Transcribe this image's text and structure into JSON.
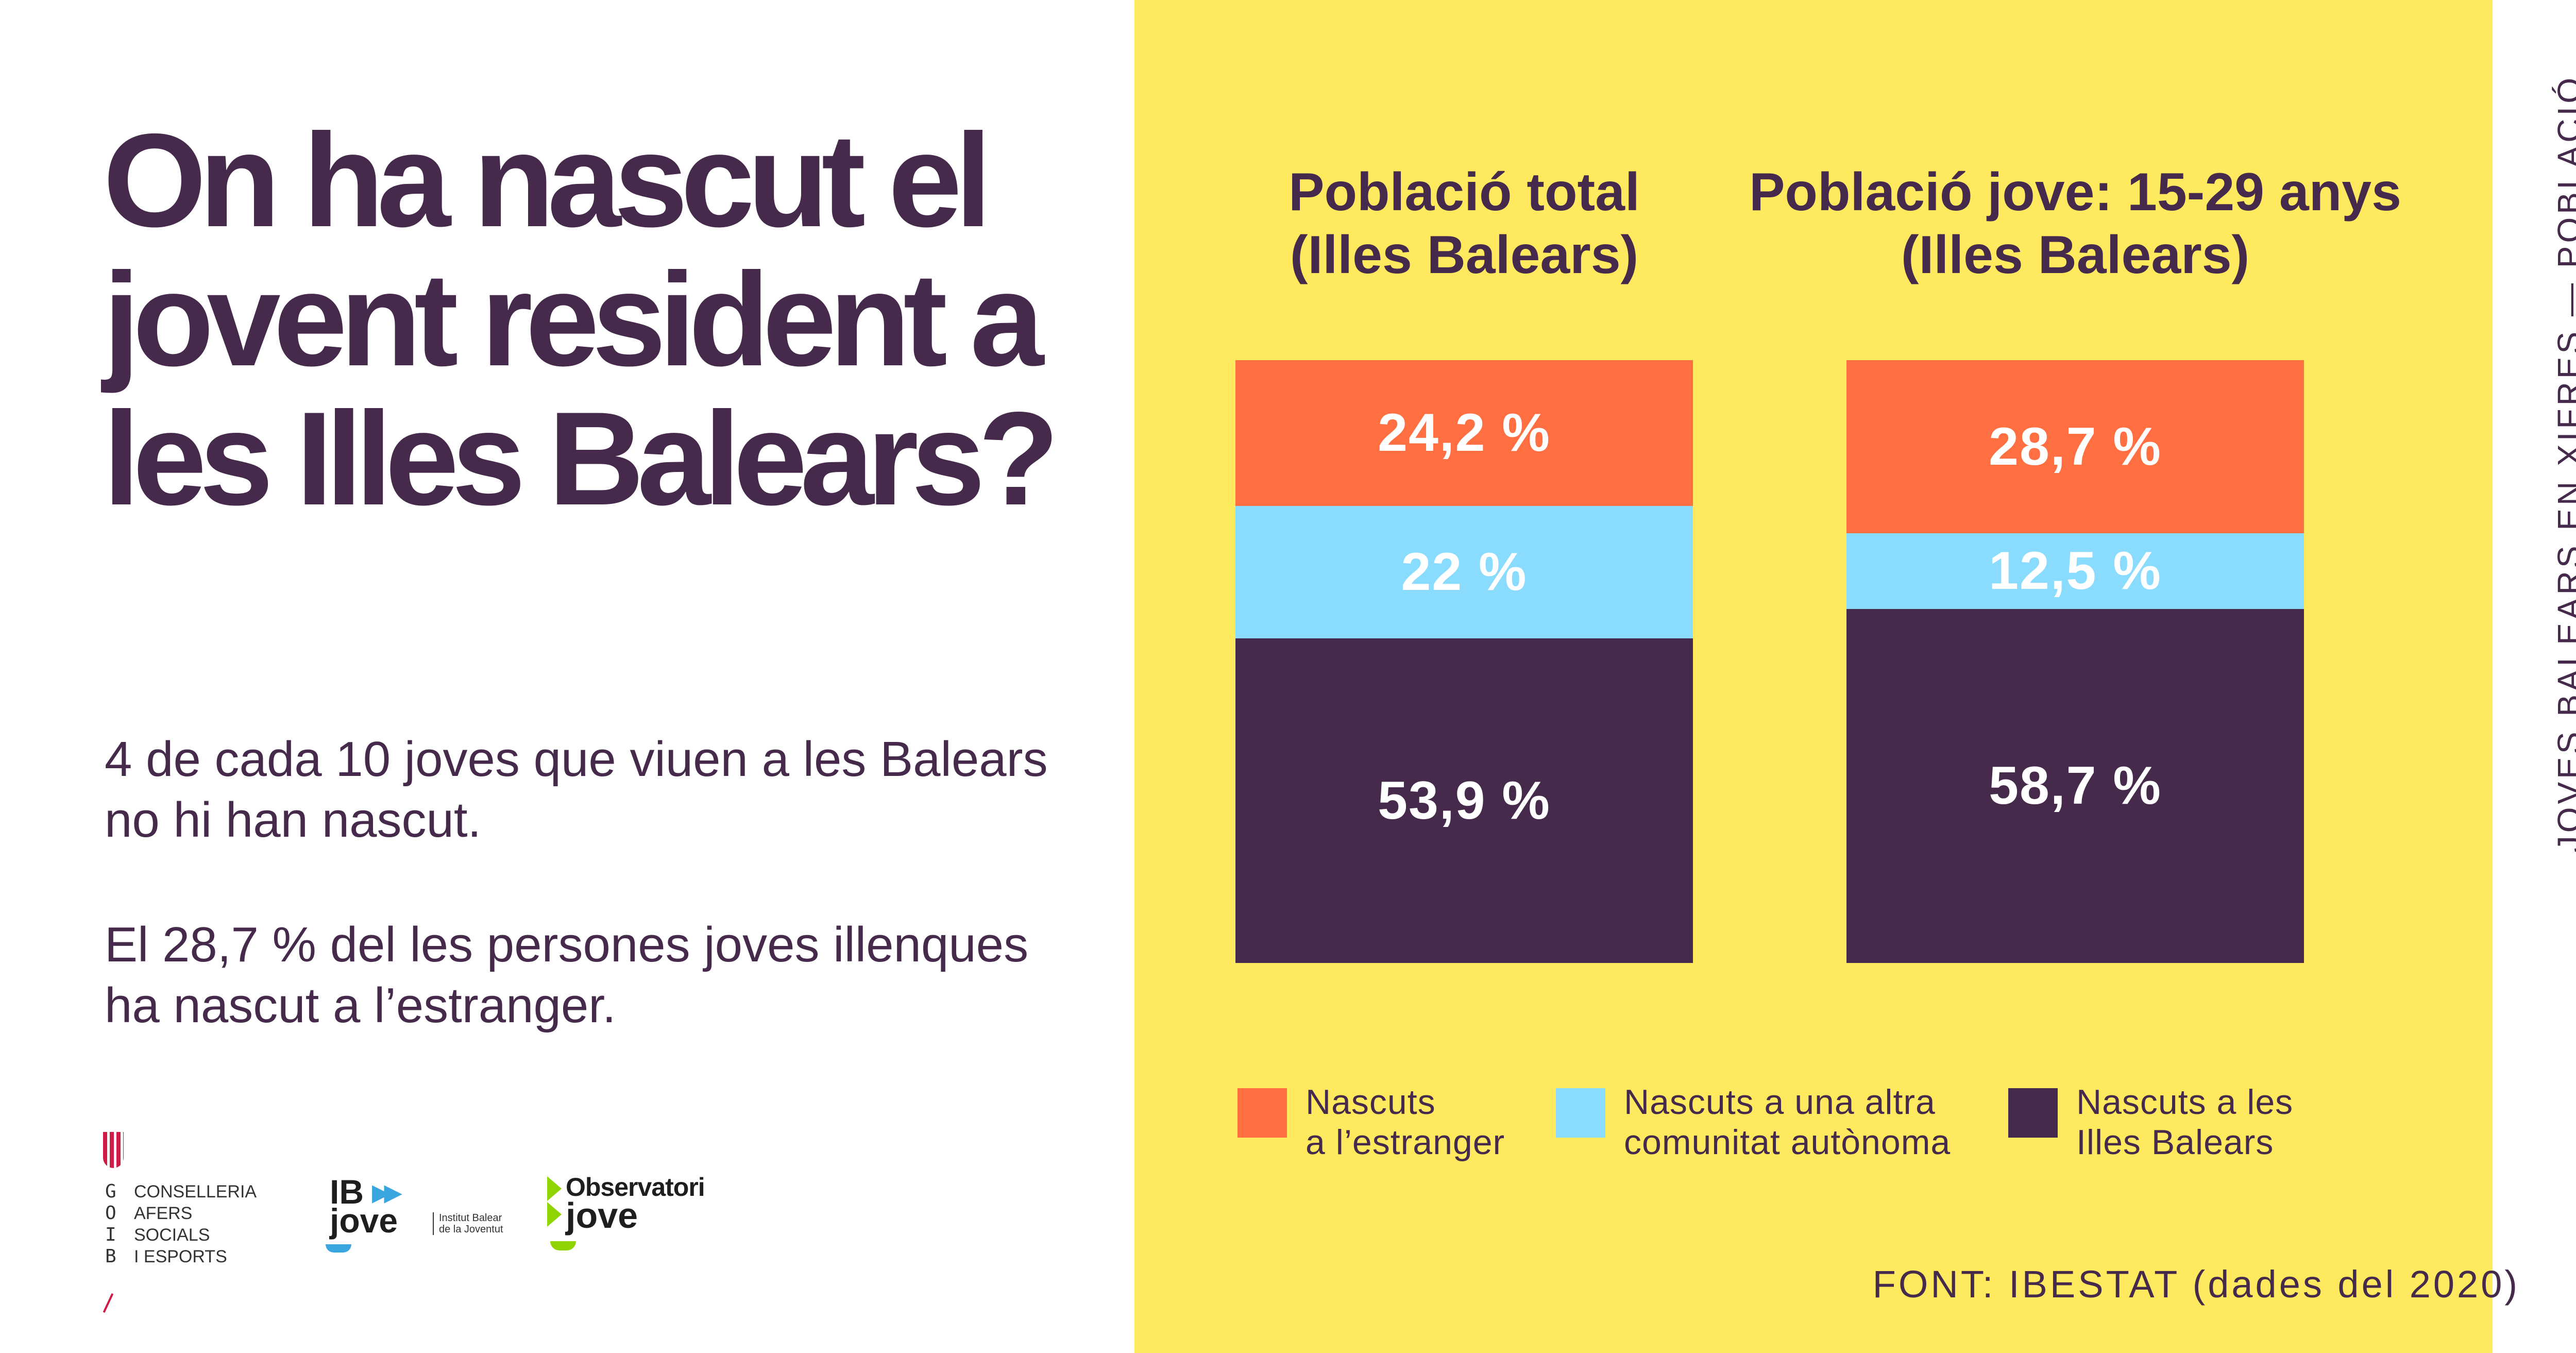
{
  "title": [
    "On ha nascut el",
    "jovent resident a",
    "les Illes Balears?"
  ],
  "paragraphs": [
    "4 de cada 10 joves que viuen a les Balears no hi han nascut.",
    "El 28,7 % del les persones joves illenques ha nascut a l’estranger."
  ],
  "side_label": "JOVES BALEARS EN XIFRES — POBLACIÓ",
  "source": "FONT: IBESTAT (dades del 2020)",
  "logos": {
    "goib_letters": "G\nO\nI\nB",
    "goib_words": "CONSELLERIA\nAFERS SOCIALS\nI ESPORTS",
    "ibjove_top": "IB",
    "ibjove_bottom": "jove",
    "ibjove_sub": "Institut Balear\nde la Joventut",
    "observatori_top": "Observatori",
    "observatori_bottom": "jove"
  },
  "colors": {
    "foreign": "#ff6f42",
    "other_region": "#8adcff",
    "balears": "#452a4b",
    "panel": "#ffe95e",
    "text": "#452a4b"
  },
  "chart_data": {
    "type": "bar",
    "stacked": true,
    "orientation": "vertical-100%",
    "categories": [
      "Població total\n(Illes Balears)",
      "Població jove: 15-29 anys\n(Illes Balears)"
    ],
    "series": [
      {
        "name": "Nascuts a l’estranger",
        "values": [
          24.2,
          28.7
        ],
        "labels": [
          "24,2 %",
          "28,7 %"
        ],
        "color": "#ff6f42"
      },
      {
        "name": "Nascuts a una altra comunitat autònoma",
        "values": [
          22,
          12.5
        ],
        "labels": [
          "22 %",
          "12,5 %"
        ],
        "color": "#8adcff"
      },
      {
        "name": "Nascuts a les Illes Balears",
        "values": [
          53.9,
          58.7
        ],
        "labels": [
          "53,9 %",
          "58,7 %"
        ],
        "color": "#452a4b"
      }
    ],
    "legend_labels": [
      "Nascuts\na l’estranger",
      "Nascuts a una altra\ncomunitat autònoma",
      "Nascuts a les\nIlles Balears"
    ],
    "legend_position": "bottom",
    "ylim": [
      0,
      100
    ],
    "grid": false
  }
}
